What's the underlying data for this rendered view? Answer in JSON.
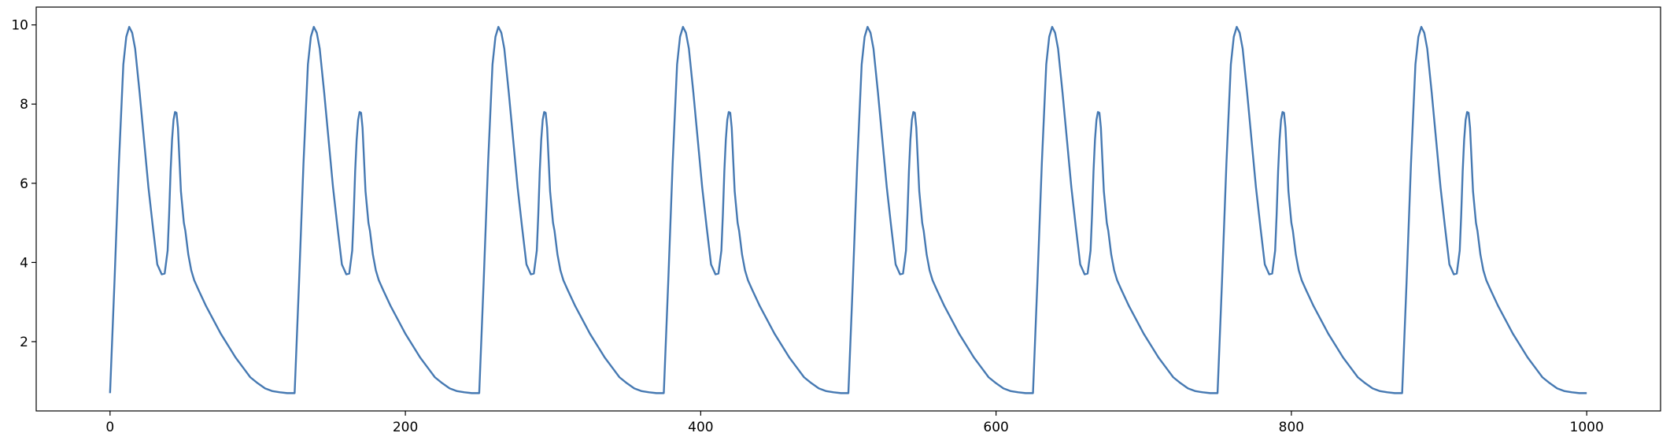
{
  "chart_data": {
    "type": "line",
    "title": "",
    "xlabel": "",
    "ylabel": "",
    "xlim": [
      -50,
      1050
    ],
    "ylim": [
      0.25,
      10.45
    ],
    "x_ticks": [
      0,
      200,
      400,
      600,
      800,
      1000
    ],
    "y_ticks": [
      2,
      4,
      6,
      8,
      10
    ],
    "x_tick_labels": [
      "0",
      "200",
      "400",
      "600",
      "800",
      "1000"
    ],
    "y_tick_labels": [
      "2",
      "4",
      "6",
      "8",
      "10"
    ],
    "grid": false,
    "legend": "none",
    "line_color": "#4679b2",
    "period": 125,
    "cycles": 8,
    "x_end": 1000,
    "series": [
      {
        "cycle": {
          "x": [
            0,
            3,
            6,
            9,
            11,
            13,
            15,
            17,
            20,
            23,
            26,
            29,
            32,
            35,
            37,
            39,
            40,
            41,
            42,
            43,
            44,
            45,
            46,
            47,
            48,
            49,
            50,
            51,
            52,
            53,
            55,
            57,
            60,
            65,
            70,
            75,
            80,
            85,
            90,
            95,
            100,
            105,
            110,
            115,
            120,
            125
          ],
          "y": [
            0.7,
            3.5,
            6.5,
            9.0,
            9.7,
            9.95,
            9.8,
            9.4,
            8.3,
            7.1,
            5.9,
            4.9,
            3.95,
            3.7,
            3.72,
            4.3,
            5.2,
            6.3,
            7.1,
            7.6,
            7.8,
            7.78,
            7.4,
            6.6,
            5.8,
            5.4,
            5.0,
            4.8,
            4.5,
            4.2,
            3.8,
            3.55,
            3.3,
            2.9,
            2.55,
            2.2,
            1.9,
            1.6,
            1.35,
            1.1,
            0.95,
            0.82,
            0.75,
            0.72,
            0.7,
            0.7
          ]
        }
      }
    ]
  }
}
